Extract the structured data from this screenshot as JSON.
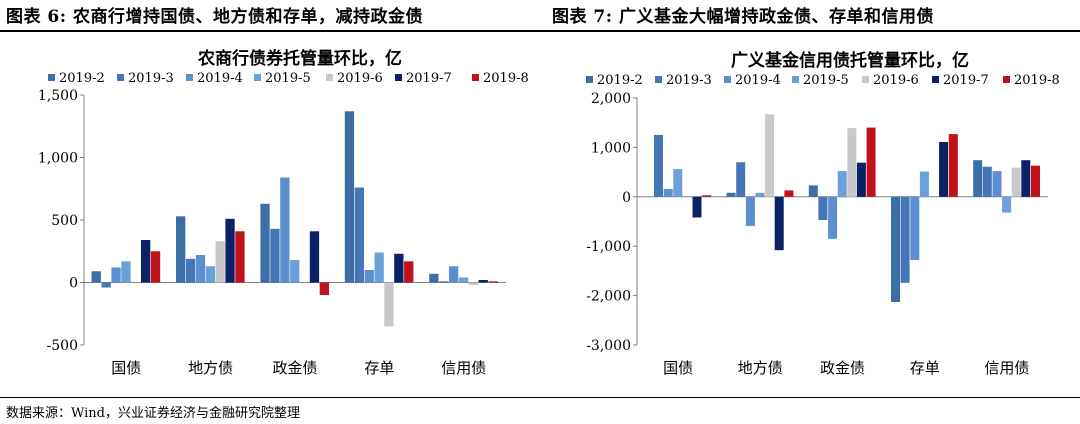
{
  "figures": {
    "fig1_title": "图表 6: 农商行增持国债、地方债和存单，减持政金债",
    "fig2_title": "图表 7: 广义基金大幅增持政金债、存单和信用债"
  },
  "source": "数据来源：Wind，兴业证券经济与金融研究院整理",
  "series_colors": [
    "#3e6ea6",
    "#4477b8",
    "#5b8fcf",
    "#6aa1d8",
    "#c8c8c8",
    "#0c2266",
    "#c0121c"
  ],
  "chart_data": [
    {
      "type": "bar",
      "title": "农商行债券托管量环比，亿",
      "categories": [
        "国债",
        "地方债",
        "政金债",
        "存单",
        "信用债"
      ],
      "ylim": [
        -500,
        1500
      ],
      "yticks": [
        -500,
        0,
        500,
        1000,
        1500
      ],
      "ytick_labels": [
        "-500",
        "0",
        "500",
        "1,000",
        "1,500"
      ],
      "legend_position": "top",
      "series": [
        {
          "name": "2019-2",
          "values": [
            90,
            530,
            630,
            1370,
            70
          ]
        },
        {
          "name": "2019-3",
          "values": [
            -40,
            190,
            430,
            760,
            10
          ]
        },
        {
          "name": "2019-4",
          "values": [
            120,
            220,
            840,
            100,
            130
          ]
        },
        {
          "name": "2019-5",
          "values": [
            170,
            130,
            180,
            240,
            40
          ]
        },
        {
          "name": "2019-6",
          "values": [
            0,
            330,
            0,
            -350,
            -20
          ]
        },
        {
          "name": "2019-7",
          "values": [
            340,
            510,
            410,
            230,
            20
          ]
        },
        {
          "name": "2019-8",
          "values": [
            250,
            410,
            -100,
            170,
            10
          ]
        }
      ]
    },
    {
      "type": "bar",
      "title": "广义基金信用债托管量环比，亿",
      "categories": [
        "国债",
        "地方债",
        "政金债",
        "存单",
        "信用债"
      ],
      "ylim": [
        -3000,
        2000
      ],
      "yticks": [
        -3000,
        -2000,
        -1000,
        0,
        1000,
        2000
      ],
      "ytick_labels": [
        "-3,000",
        "-2,000",
        "-1,000",
        "0",
        "1,000",
        "2,000"
      ],
      "legend_position": "top",
      "series": [
        {
          "name": "2019-2",
          "values": [
            0,
            80,
            230,
            -2130,
            740
          ]
        },
        {
          "name": "2019-3",
          "values": [
            1250,
            700,
            -470,
            -1740,
            610
          ]
        },
        {
          "name": "2019-4",
          "values": [
            160,
            -590,
            -850,
            -1280,
            520
          ]
        },
        {
          "name": "2019-5",
          "values": [
            560,
            80,
            520,
            510,
            -320
          ]
        },
        {
          "name": "2019-6",
          "values": [
            0,
            1670,
            1390,
            0,
            590
          ]
        },
        {
          "name": "2019-7",
          "values": [
            -420,
            -1080,
            690,
            1110,
            740
          ]
        },
        {
          "name": "2019-8",
          "values": [
            30,
            130,
            1400,
            1270,
            630
          ]
        }
      ]
    }
  ]
}
